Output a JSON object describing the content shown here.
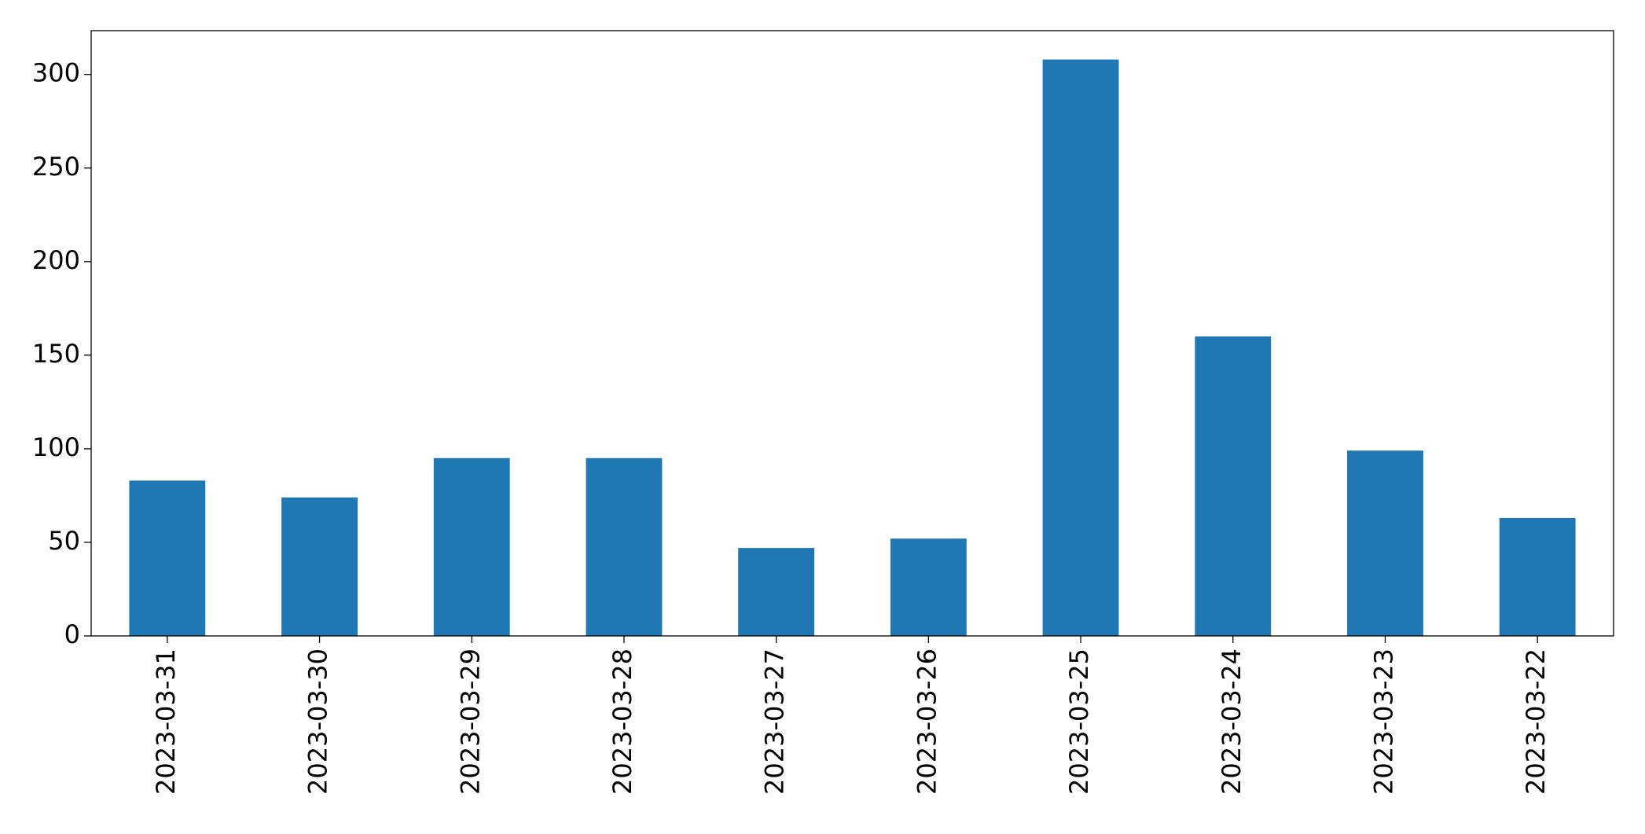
{
  "chart_data": {
    "type": "bar",
    "categories": [
      "2023-03-31",
      "2023-03-30",
      "2023-03-29",
      "2023-03-28",
      "2023-03-27",
      "2023-03-26",
      "2023-03-25",
      "2023-03-24",
      "2023-03-23",
      "2023-03-22"
    ],
    "values": [
      83,
      74,
      95,
      95,
      47,
      52,
      308,
      160,
      99,
      63
    ],
    "color": "#1f77b4",
    "ylim": [
      0,
      323.4
    ],
    "yticks": [
      0,
      50,
      100,
      150,
      200,
      250,
      300
    ],
    "grid": false
  }
}
